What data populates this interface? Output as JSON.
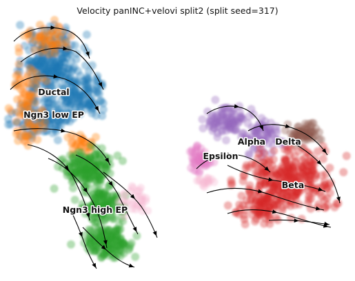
{
  "title": "Velocity panINC+velovi split2 (split seed=317)",
  "colors": {
    "Ductal": "#1f77b4",
    "Ngn3 low EP": "#ff7f0e",
    "Ngn3 high EP": "#2ca02c",
    "Pre-endocrine": "#f7b6d2",
    "Alpha": "#9467bd",
    "Beta": "#d62728",
    "Delta": "#8c564b",
    "Epsilon": "#e377c2",
    "stream": "#000000"
  },
  "chart_data": {
    "type": "scatter",
    "subtype": "umap-velocity-stream",
    "title": "Velocity panINC+velovi split2 (split seed=317)",
    "axes_visible": false,
    "grid": false,
    "clusters": [
      {
        "name": "Ductal",
        "label": "Ductal"
      },
      {
        "name": "Ngn3 low EP",
        "label": "Ngn3 low EP"
      },
      {
        "name": "Ngn3 high EP",
        "label": "Ngn3 high EP"
      },
      {
        "name": "Alpha",
        "label": "Alpha"
      },
      {
        "name": "Delta",
        "label": "Delta"
      },
      {
        "name": "Epsilon",
        "label": "Epsilon"
      },
      {
        "name": "Beta",
        "label": "Beta"
      }
    ]
  }
}
